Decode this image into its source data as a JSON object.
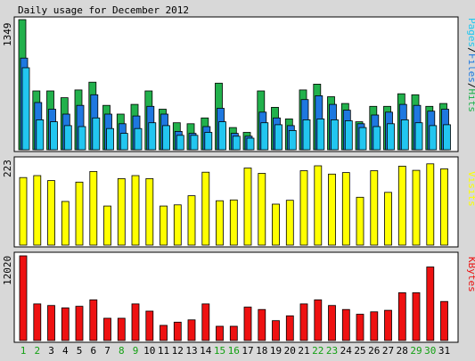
{
  "title": "Daily usage for December 2012",
  "colors": {
    "background": "#d8d8d8",
    "panel": "#ffffff",
    "hits": "#22b14c",
    "files": "#1e78e0",
    "pages": "#22c6f0",
    "visits": "#ffff00",
    "kbytes": "#ee1111",
    "weekday_label": "#000000",
    "weekend_label": "#11a011",
    "bar_outline": "#000000"
  },
  "chart_data": [
    {
      "type": "bar",
      "title": "Daily usage for December 2012",
      "panel": "pages-files-hits",
      "legend_label": [
        "Pages",
        "/",
        "Files",
        "/",
        "Hits"
      ],
      "ylabel_max": "1349",
      "ylim": [
        0,
        1349
      ],
      "categories": [
        "1",
        "2",
        "3",
        "4",
        "5",
        "6",
        "7",
        "8",
        "9",
        "10",
        "11",
        "12",
        "13",
        "14",
        "15",
        "16",
        "17",
        "18",
        "19",
        "20",
        "21",
        "22",
        "23",
        "24",
        "25",
        "26",
        "27",
        "28",
        "29",
        "30",
        "31"
      ],
      "series": [
        {
          "name": "Hits",
          "color_key": "hits",
          "values": [
            1349,
            610,
            610,
            540,
            620,
            700,
            460,
            370,
            470,
            610,
            420,
            280,
            270,
            330,
            690,
            230,
            180,
            610,
            440,
            320,
            620,
            680,
            550,
            480,
            290,
            450,
            450,
            580,
            570,
            450,
            480
          ]
        },
        {
          "name": "Files",
          "color_key": "files",
          "values": [
            950,
            490,
            420,
            370,
            460,
            570,
            370,
            270,
            350,
            450,
            370,
            190,
            170,
            240,
            430,
            170,
            140,
            390,
            330,
            250,
            520,
            560,
            470,
            410,
            270,
            360,
            390,
            470,
            460,
            400,
            420
          ]
        },
        {
          "name": "Pages",
          "color_key": "pages",
          "values": [
            850,
            310,
            290,
            250,
            240,
            330,
            220,
            170,
            220,
            280,
            250,
            150,
            150,
            180,
            290,
            140,
            120,
            280,
            260,
            200,
            310,
            320,
            310,
            300,
            230,
            240,
            270,
            310,
            280,
            250,
            260
          ]
        }
      ]
    },
    {
      "type": "bar",
      "panel": "visits",
      "legend_label": [
        "Visits"
      ],
      "ylabel_max": "223",
      "ylim": [
        0,
        223
      ],
      "categories": [
        "1",
        "2",
        "3",
        "4",
        "5",
        "6",
        "7",
        "8",
        "9",
        "10",
        "11",
        "12",
        "13",
        "14",
        "15",
        "16",
        "17",
        "18",
        "19",
        "20",
        "21",
        "22",
        "23",
        "24",
        "25",
        "26",
        "27",
        "28",
        "29",
        "30",
        "31"
      ],
      "series": [
        {
          "name": "Visits",
          "color_key": "visits",
          "values": [
            178,
            183,
            170,
            115,
            166,
            194,
            103,
            175,
            183,
            175,
            103,
            106,
            130,
            192,
            117,
            119,
            203,
            189,
            108,
            118,
            196,
            209,
            187,
            191,
            126,
            196,
            139,
            208,
            197,
            214,
            201
          ]
        }
      ]
    },
    {
      "type": "bar",
      "panel": "kbytes",
      "legend_label": [
        "KBytes"
      ],
      "ylabel_max": "12020",
      "ylim": [
        0,
        12020
      ],
      "categories": [
        "1",
        "2",
        "3",
        "4",
        "5",
        "6",
        "7",
        "8",
        "9",
        "10",
        "11",
        "12",
        "13",
        "14",
        "15",
        "16",
        "17",
        "18",
        "19",
        "20",
        "21",
        "22",
        "23",
        "24",
        "25",
        "26",
        "27",
        "28",
        "29",
        "30",
        "31"
      ],
      "series": [
        {
          "name": "KBytes",
          "color_key": "kbytes",
          "values": [
            12020,
            5200,
            4970,
            4630,
            4860,
            5770,
            3160,
            3160,
            5200,
            4180,
            2150,
            2610,
            2930,
            5200,
            2030,
            2030,
            4740,
            4400,
            2820,
            3510,
            5200,
            5770,
            4970,
            4400,
            3730,
            4070,
            4290,
            6780,
            6780,
            10440,
            5540
          ]
        }
      ]
    }
  ],
  "x_labels": [
    {
      "day": "1",
      "weekend": true
    },
    {
      "day": "2",
      "weekend": true
    },
    {
      "day": "3",
      "weekend": false
    },
    {
      "day": "4",
      "weekend": false
    },
    {
      "day": "5",
      "weekend": false
    },
    {
      "day": "6",
      "weekend": false
    },
    {
      "day": "7",
      "weekend": false
    },
    {
      "day": "8",
      "weekend": true
    },
    {
      "day": "9",
      "weekend": true
    },
    {
      "day": "10",
      "weekend": false
    },
    {
      "day": "11",
      "weekend": false
    },
    {
      "day": "12",
      "weekend": false
    },
    {
      "day": "13",
      "weekend": false
    },
    {
      "day": "14",
      "weekend": false
    },
    {
      "day": "15",
      "weekend": true
    },
    {
      "day": "16",
      "weekend": true
    },
    {
      "day": "17",
      "weekend": false
    },
    {
      "day": "18",
      "weekend": false
    },
    {
      "day": "19",
      "weekend": false
    },
    {
      "day": "20",
      "weekend": false
    },
    {
      "day": "21",
      "weekend": false
    },
    {
      "day": "22",
      "weekend": true
    },
    {
      "day": "23",
      "weekend": true
    },
    {
      "day": "24",
      "weekend": false
    },
    {
      "day": "25",
      "weekend": false
    },
    {
      "day": "26",
      "weekend": false
    },
    {
      "day": "27",
      "weekend": false
    },
    {
      "day": "28",
      "weekend": false
    },
    {
      "day": "29",
      "weekend": true
    },
    {
      "day": "30",
      "weekend": true
    },
    {
      "day": "31",
      "weekend": false
    }
  ]
}
